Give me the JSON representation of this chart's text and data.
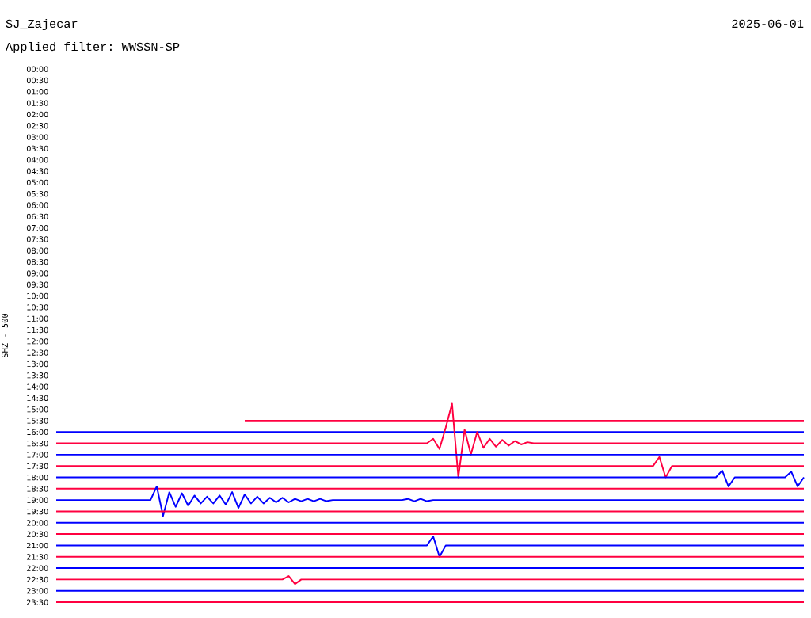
{
  "chart_data": {
    "type": "line",
    "title": "SJ_Zajecar",
    "subtitle": "Applied filter: WWSSN-SP",
    "annotations": [
      "2025-06-01"
    ],
    "ylabel": "SHZ - 500",
    "tick_labels": "y",
    "ylim": [
      23.5,
      0
    ],
    "yticks": [
      {
        "value": 0,
        "label": "00:00"
      },
      {
        "value": 0.5,
        "label": "00:30"
      },
      {
        "value": 1,
        "label": "01:00"
      },
      {
        "value": 1.5,
        "label": "01:30"
      },
      {
        "value": 2,
        "label": "02:00"
      },
      {
        "value": 2.5,
        "label": "02:30"
      },
      {
        "value": 3,
        "label": "03:00"
      },
      {
        "value": 3.5,
        "label": "03:30"
      },
      {
        "value": 4,
        "label": "04:00"
      },
      {
        "value": 4.5,
        "label": "04:30"
      },
      {
        "value": 5,
        "label": "05:00"
      },
      {
        "value": 5.5,
        "label": "05:30"
      },
      {
        "value": 6,
        "label": "06:00"
      },
      {
        "value": 6.5,
        "label": "06:30"
      },
      {
        "value": 7,
        "label": "07:00"
      },
      {
        "value": 7.5,
        "label": "07:30"
      },
      {
        "value": 8,
        "label": "08:00"
      },
      {
        "value": 8.5,
        "label": "08:30"
      },
      {
        "value": 9,
        "label": "09:00"
      },
      {
        "value": 9.5,
        "label": "09:30"
      },
      {
        "value": 10,
        "label": "10:00"
      },
      {
        "value": 10.5,
        "label": "10:30"
      },
      {
        "value": 11,
        "label": "11:00"
      },
      {
        "value": 11.5,
        "label": "11:30"
      },
      {
        "value": 12,
        "label": "12:00"
      },
      {
        "value": 12.5,
        "label": "12:30"
      },
      {
        "value": 13,
        "label": "13:00"
      },
      {
        "value": 13.5,
        "label": "13:30"
      },
      {
        "value": 14,
        "label": "14:00"
      },
      {
        "value": 14.5,
        "label": "14:30"
      },
      {
        "value": 15,
        "label": "15:00"
      },
      {
        "value": 15.5,
        "label": "15:30"
      },
      {
        "value": 16,
        "label": "16:00"
      },
      {
        "value": 16.5,
        "label": "16:30"
      },
      {
        "value": 17,
        "label": "17:00"
      },
      {
        "value": 17.5,
        "label": "17:30"
      },
      {
        "value": 18,
        "label": "18:00"
      },
      {
        "value": 18.5,
        "label": "18:30"
      },
      {
        "value": 19,
        "label": "19:00"
      },
      {
        "value": 19.5,
        "label": "19:30"
      },
      {
        "value": 20,
        "label": "20:00"
      },
      {
        "value": 20.5,
        "label": "20:30"
      },
      {
        "value": 21,
        "label": "21:00"
      },
      {
        "value": 21.5,
        "label": "21:30"
      },
      {
        "value": 22,
        "label": "22:00"
      },
      {
        "value": 22.5,
        "label": "22:30"
      },
      {
        "value": 23,
        "label": "23:00"
      },
      {
        "value": 23.5,
        "label": "23:30"
      }
    ],
    "categories": [
      null,
      null,
      null,
      null,
      null,
      null,
      null,
      null,
      null,
      null,
      null,
      null,
      null,
      null,
      null,
      null,
      null,
      null,
      null,
      null,
      null,
      null,
      null,
      null,
      null,
      null,
      null,
      null,
      null,
      null,
      null,
      null,
      null,
      null,
      null,
      null,
      null,
      null,
      null,
      null,
      null,
      null,
      null,
      null,
      null,
      null,
      null,
      null,
      null,
      null,
      null,
      null,
      null,
      null,
      null,
      null,
      null,
      null,
      null,
      null,
      null,
      null,
      null,
      null,
      null,
      null,
      null,
      null,
      null,
      null,
      null,
      null,
      null,
      null,
      null,
      null,
      null,
      null,
      null,
      null,
      null,
      null,
      null,
      null,
      null,
      null,
      null,
      null,
      null,
      null,
      null,
      null,
      null,
      null,
      null,
      null,
      null,
      null,
      null,
      null,
      null,
      null,
      null,
      null,
      null,
      null,
      null,
      null,
      null,
      null,
      null,
      null,
      null,
      null,
      null,
      null,
      null,
      null,
      null,
      null
    ],
    "series": [
      {
        "color": "#ff0040",
        "values": [
          null,
          null,
          null,
          null,
          null,
          null,
          null,
          null,
          null,
          null,
          null,
          null,
          null,
          null,
          null,
          null,
          null,
          null,
          null,
          null,
          null,
          null,
          null,
          null,
          null,
          null,
          null,
          null,
          null,
          null,
          15.5,
          15.5,
          15.5,
          15.5,
          15.5,
          15.5,
          15.5,
          15.5,
          15.5,
          15.5,
          15.5,
          15.5,
          15.5,
          15.5,
          15.5,
          15.5,
          15.5,
          15.5,
          15.5,
          15.5,
          15.5,
          15.5,
          15.5,
          15.5,
          15.5,
          15.5,
          15.5,
          15.5,
          15.5,
          15.5,
          15.5,
          15.5,
          15.5,
          15.5,
          15.5,
          15.5,
          15.5,
          15.5,
          15.5,
          15.5,
          15.5,
          15.5,
          15.5,
          15.5,
          15.5,
          15.5,
          15.5,
          15.5,
          15.5,
          15.5,
          15.5,
          15.5,
          15.5,
          15.5,
          15.5,
          15.5,
          15.5,
          15.5,
          15.5,
          15.5,
          15.5,
          15.5,
          15.5,
          15.5,
          15.5,
          15.5,
          15.5,
          15.5,
          15.5,
          15.5,
          15.5,
          15.5,
          15.5,
          15.5,
          15.5,
          15.5,
          15.5,
          15.5,
          15.5,
          15.5,
          15.5,
          15.5,
          15.5,
          15.5,
          15.5,
          15.5,
          15.5,
          15.5,
          15.5,
          15.5
        ]
      },
      {
        "color": "#0000ff",
        "values": [
          16,
          16,
          16,
          16,
          16,
          16,
          16,
          16,
          16,
          16,
          16,
          16,
          16,
          16,
          16,
          16,
          16,
          16,
          16,
          16,
          16,
          16,
          16,
          16,
          16,
          16,
          16,
          16,
          16,
          16,
          16,
          16,
          16,
          16,
          16,
          16,
          16,
          16,
          16,
          16,
          16,
          16,
          16,
          16,
          16,
          16,
          16,
          16,
          16,
          16,
          16,
          16,
          16,
          16,
          16,
          16,
          16,
          16,
          16,
          16,
          16,
          16,
          16,
          16,
          16,
          16,
          16,
          16,
          16,
          16,
          16,
          16,
          16,
          16,
          16,
          16,
          16,
          16,
          16,
          16,
          16,
          16,
          16,
          16,
          16,
          16,
          16,
          16,
          16,
          16,
          16,
          16,
          16,
          16,
          16,
          16,
          16,
          16,
          16,
          16,
          16,
          16,
          16,
          16,
          16,
          16,
          16,
          16,
          16,
          16,
          16,
          16,
          16,
          16,
          16,
          16,
          16,
          16,
          16,
          16
        ]
      },
      {
        "color": "#ff0040",
        "values": [
          16.5,
          16.5,
          16.5,
          16.5,
          16.5,
          16.5,
          16.5,
          16.5,
          16.5,
          16.5,
          16.5,
          16.5,
          16.5,
          16.5,
          16.5,
          16.5,
          16.5,
          16.5,
          16.5,
          16.5,
          16.5,
          16.5,
          16.5,
          16.5,
          16.5,
          16.5,
          16.5,
          16.5,
          16.5,
          16.5,
          16.5,
          16.5,
          16.5,
          16.5,
          16.5,
          16.5,
          16.5,
          16.5,
          16.5,
          16.5,
          16.5,
          16.5,
          16.5,
          16.5,
          16.5,
          16.5,
          16.5,
          16.5,
          16.5,
          16.5,
          16.5,
          16.5,
          16.5,
          16.5,
          16.5,
          16.5,
          16.5,
          16.5,
          16.5,
          16.5,
          16.3,
          16.75,
          15.8,
          14.75,
          18.0,
          15.9,
          17.0,
          16.0,
          16.7,
          16.3,
          16.65,
          16.35,
          16.6,
          16.4,
          16.55,
          16.45,
          16.5,
          16.5,
          16.5,
          16.5,
          16.5,
          16.5,
          16.5,
          16.5,
          16.5,
          16.5,
          16.5,
          16.5,
          16.5,
          16.5,
          16.5,
          16.5,
          16.5,
          16.5,
          16.5,
          16.5,
          16.5,
          16.5,
          16.5,
          16.5,
          16.5,
          16.5,
          16.5,
          16.5,
          16.5,
          16.5,
          16.5,
          16.5,
          16.5,
          16.5,
          16.5,
          16.5,
          16.5,
          16.5,
          16.5,
          16.5,
          16.5,
          16.5,
          16.5,
          16.5
        ]
      },
      {
        "color": "#0000ff",
        "values": [
          17,
          17,
          17,
          17,
          17,
          17,
          17,
          17,
          17,
          17,
          17,
          17,
          17,
          17,
          17,
          17,
          17,
          17,
          17,
          17,
          17,
          17,
          17,
          17,
          17,
          17,
          17,
          17,
          17,
          17,
          17,
          17,
          17,
          17,
          17,
          17,
          17,
          17,
          17,
          17,
          17,
          17,
          17,
          17,
          17,
          17,
          17,
          17,
          17,
          17,
          17,
          17,
          17,
          17,
          17,
          17,
          17,
          17,
          17,
          17,
          17,
          17,
          17,
          17,
          17,
          17,
          17,
          17,
          17,
          17,
          17,
          17,
          17,
          17,
          17,
          17,
          17,
          17,
          17,
          17,
          17,
          17,
          17,
          17,
          17,
          17,
          17,
          17,
          17,
          17,
          17,
          17,
          17,
          17,
          17,
          17,
          17,
          17,
          17,
          17,
          17,
          17,
          17,
          17,
          17,
          17,
          17,
          17,
          17,
          17,
          17,
          17,
          17,
          17,
          17,
          17,
          17,
          17,
          17,
          17
        ]
      },
      {
        "color": "#ff0040",
        "values": [
          17.5,
          17.5,
          17.5,
          17.5,
          17.5,
          17.5,
          17.5,
          17.5,
          17.5,
          17.5,
          17.5,
          17.5,
          17.5,
          17.5,
          17.5,
          17.5,
          17.5,
          17.5,
          17.5,
          17.5,
          17.5,
          17.5,
          17.5,
          17.5,
          17.5,
          17.5,
          17.5,
          17.5,
          17.5,
          17.5,
          17.5,
          17.5,
          17.5,
          17.5,
          17.5,
          17.5,
          17.5,
          17.5,
          17.5,
          17.5,
          17.5,
          17.5,
          17.5,
          17.5,
          17.5,
          17.5,
          17.5,
          17.5,
          17.5,
          17.5,
          17.5,
          17.5,
          17.5,
          17.5,
          17.5,
          17.5,
          17.5,
          17.5,
          17.5,
          17.5,
          17.5,
          17.5,
          17.5,
          17.5,
          17.5,
          17.5,
          17.5,
          17.5,
          17.5,
          17.5,
          17.5,
          17.5,
          17.5,
          17.5,
          17.5,
          17.5,
          17.5,
          17.5,
          17.5,
          17.5,
          17.5,
          17.5,
          17.5,
          17.5,
          17.5,
          17.5,
          17.5,
          17.5,
          17.5,
          17.5,
          17.5,
          17.5,
          17.5,
          17.5,
          17.5,
          17.5,
          17.1,
          18.0,
          17.5,
          17.5,
          17.5,
          17.5,
          17.5,
          17.5,
          17.5,
          17.5,
          17.5,
          17.5,
          17.5,
          17.5,
          17.5,
          17.5,
          17.5,
          17.5,
          17.5,
          17.5,
          17.5,
          17.5,
          17.5,
          17.5
        ]
      },
      {
        "color": "#0000ff",
        "values": [
          18,
          18,
          18,
          18,
          18,
          18,
          18,
          18,
          18,
          18,
          18,
          18,
          18,
          18,
          18,
          18,
          18,
          18,
          18,
          18,
          18,
          18,
          18,
          18,
          18,
          18,
          18,
          18,
          18,
          18,
          18,
          18,
          18,
          18,
          18,
          18,
          18,
          18,
          18,
          18,
          18,
          18,
          18,
          18,
          18,
          18,
          18,
          18,
          18,
          18,
          18,
          18,
          18,
          18,
          18,
          18,
          18,
          18,
          18,
          18,
          18,
          18,
          18,
          18,
          18,
          18,
          18,
          18,
          18,
          18,
          18,
          18,
          18,
          18,
          18,
          18,
          18,
          18,
          18,
          18,
          18,
          18,
          18,
          18,
          18,
          18,
          18,
          18,
          18,
          18,
          18,
          18,
          18,
          18,
          18,
          18,
          18,
          18,
          18,
          18,
          18,
          18,
          18,
          18,
          18,
          18,
          17.7,
          18.4,
          18,
          18,
          18,
          18,
          18,
          18,
          18,
          18,
          18,
          17.75,
          18.4,
          18
        ]
      },
      {
        "color": "#ff0040",
        "values": [
          18.5,
          18.5,
          18.5,
          18.5,
          18.5,
          18.5,
          18.5,
          18.5,
          18.5,
          18.5,
          18.5,
          18.5,
          18.5,
          18.5,
          18.5,
          18.5,
          18.5,
          18.5,
          18.5,
          18.5,
          18.5,
          18.5,
          18.5,
          18.5,
          18.5,
          18.5,
          18.5,
          18.5,
          18.5,
          18.5,
          18.5,
          18.5,
          18.5,
          18.5,
          18.5,
          18.5,
          18.5,
          18.5,
          18.5,
          18.5,
          18.5,
          18.5,
          18.5,
          18.5,
          18.5,
          18.5,
          18.5,
          18.5,
          18.5,
          18.5,
          18.5,
          18.5,
          18.5,
          18.5,
          18.5,
          18.5,
          18.5,
          18.5,
          18.5,
          18.5,
          18.5,
          18.5,
          18.5,
          18.5,
          18.5,
          18.5,
          18.5,
          18.5,
          18.5,
          18.5,
          18.5,
          18.5,
          18.5,
          18.5,
          18.5,
          18.5,
          18.5,
          18.5,
          18.5,
          18.5,
          18.5,
          18.5,
          18.5,
          18.5,
          18.5,
          18.5,
          18.5,
          18.5,
          18.5,
          18.5,
          18.5,
          18.5,
          18.5,
          18.5,
          18.5,
          18.5,
          18.5,
          18.5,
          18.5,
          18.5,
          18.5,
          18.5,
          18.5,
          18.5,
          18.5,
          18.5,
          18.5,
          18.5,
          18.5,
          18.5,
          18.5,
          18.5,
          18.5,
          18.5,
          18.5,
          18.5,
          18.5,
          18.5,
          18.5,
          18.5
        ]
      },
      {
        "color": "#0000ff",
        "values": [
          19,
          19,
          19,
          19,
          19,
          19,
          19,
          19,
          19,
          19,
          19,
          19,
          19,
          19,
          19,
          19,
          18.4,
          19.7,
          18.65,
          19.3,
          18.7,
          19.25,
          18.8,
          19.15,
          18.85,
          19.15,
          18.8,
          19.2,
          18.65,
          19.35,
          18.75,
          19.15,
          18.85,
          19.15,
          18.9,
          19.1,
          18.9,
          19.1,
          18.95,
          19.05,
          18.95,
          19.05,
          18.95,
          19.05,
          19,
          19,
          19,
          19,
          19,
          19,
          19,
          19,
          19,
          19,
          19,
          19,
          18.95,
          19.05,
          18.95,
          19.05,
          19,
          19,
          19,
          19,
          19,
          19,
          19,
          19,
          19,
          19,
          19,
          19,
          19,
          19,
          19,
          19,
          19,
          19,
          19,
          19,
          19,
          19,
          19,
          19,
          19,
          19,
          19,
          19,
          19,
          19,
          19,
          19,
          19,
          19,
          19,
          19,
          19,
          19,
          19,
          19,
          19,
          19,
          19,
          19,
          19,
          19,
          19,
          19,
          19,
          19,
          19,
          19,
          19,
          19,
          19,
          19,
          19,
          19,
          19,
          19
        ]
      },
      {
        "color": "#ff0040",
        "values": [
          19.5,
          19.5,
          19.5,
          19.5,
          19.5,
          19.5,
          19.5,
          19.5,
          19.5,
          19.5,
          19.5,
          19.5,
          19.5,
          19.5,
          19.5,
          19.5,
          19.5,
          19.5,
          19.5,
          19.5,
          19.5,
          19.5,
          19.5,
          19.5,
          19.5,
          19.5,
          19.5,
          19.5,
          19.5,
          19.5,
          19.5,
          19.5,
          19.5,
          19.5,
          19.5,
          19.5,
          19.5,
          19.5,
          19.5,
          19.5,
          19.5,
          19.5,
          19.5,
          19.5,
          19.5,
          19.5,
          19.5,
          19.5,
          19.5,
          19.5,
          19.5,
          19.5,
          19.5,
          19.5,
          19.5,
          19.5,
          19.5,
          19.5,
          19.5,
          19.5,
          19.5,
          19.5,
          19.5,
          19.5,
          19.5,
          19.5,
          19.5,
          19.5,
          19.5,
          19.5,
          19.5,
          19.5,
          19.5,
          19.5,
          19.5,
          19.5,
          19.5,
          19.5,
          19.5,
          19.5,
          19.5,
          19.5,
          19.5,
          19.5,
          19.5,
          19.5,
          19.5,
          19.5,
          19.5,
          19.5,
          19.5,
          19.5,
          19.5,
          19.5,
          19.5,
          19.5,
          19.5,
          19.5,
          19.5,
          19.5,
          19.5,
          19.5,
          19.5,
          19.5,
          19.5,
          19.5,
          19.5,
          19.5,
          19.5,
          19.5,
          19.5,
          19.5,
          19.5,
          19.5,
          19.5,
          19.5,
          19.5,
          19.5,
          19.5,
          19.5
        ]
      },
      {
        "color": "#0000ff",
        "values": [
          20,
          20,
          20,
          20,
          20,
          20,
          20,
          20,
          20,
          20,
          20,
          20,
          20,
          20,
          20,
          20,
          20,
          20,
          20,
          20,
          20,
          20,
          20,
          20,
          20,
          20,
          20,
          20,
          20,
          20,
          20,
          20,
          20,
          20,
          20,
          20,
          20,
          20,
          20,
          20,
          20,
          20,
          20,
          20,
          20,
          20,
          20,
          20,
          20,
          20,
          20,
          20,
          20,
          20,
          20,
          20,
          20,
          20,
          20,
          20,
          20,
          20,
          20,
          20,
          20,
          20,
          20,
          20,
          20,
          20,
          20,
          20,
          20,
          20,
          20,
          20,
          20,
          20,
          20,
          20,
          20,
          20,
          20,
          20,
          20,
          20,
          20,
          20,
          20,
          20,
          20,
          20,
          20,
          20,
          20,
          20,
          20,
          20,
          20,
          20,
          20,
          20,
          20,
          20,
          20,
          20,
          20,
          20,
          20,
          20,
          20,
          20,
          20,
          20,
          20,
          20,
          20,
          20,
          20,
          20
        ]
      },
      {
        "color": "#ff0040",
        "values": [
          20.5,
          20.5,
          20.5,
          20.5,
          20.5,
          20.5,
          20.5,
          20.5,
          20.5,
          20.5,
          20.5,
          20.5,
          20.5,
          20.5,
          20.5,
          20.5,
          20.5,
          20.5,
          20.5,
          20.5,
          20.5,
          20.5,
          20.5,
          20.5,
          20.5,
          20.5,
          20.5,
          20.5,
          20.5,
          20.5,
          20.5,
          20.5,
          20.5,
          20.5,
          20.5,
          20.5,
          20.5,
          20.5,
          20.5,
          20.5,
          20.5,
          20.5,
          20.5,
          20.5,
          20.5,
          20.5,
          20.5,
          20.5,
          20.5,
          20.5,
          20.5,
          20.5,
          20.5,
          20.5,
          20.5,
          20.5,
          20.5,
          20.5,
          20.5,
          20.5,
          20.5,
          20.5,
          20.5,
          20.5,
          20.5,
          20.5,
          20.5,
          20.5,
          20.5,
          20.5,
          20.5,
          20.5,
          20.5,
          20.5,
          20.5,
          20.5,
          20.5,
          20.5,
          20.5,
          20.5,
          20.5,
          20.5,
          20.5,
          20.5,
          20.5,
          20.5,
          20.5,
          20.5,
          20.5,
          20.5,
          20.5,
          20.5,
          20.5,
          20.5,
          20.5,
          20.5,
          20.5,
          20.5,
          20.5,
          20.5,
          20.5,
          20.5,
          20.5,
          20.5,
          20.5,
          20.5,
          20.5,
          20.5,
          20.5,
          20.5,
          20.5,
          20.5,
          20.5,
          20.5,
          20.5,
          20.5,
          20.5,
          20.5,
          20.5,
          20.5
        ]
      },
      {
        "color": "#0000ff",
        "values": [
          21,
          21,
          21,
          21,
          21,
          21,
          21,
          21,
          21,
          21,
          21,
          21,
          21,
          21,
          21,
          21,
          21,
          21,
          21,
          21,
          21,
          21,
          21,
          21,
          21,
          21,
          21,
          21,
          21,
          21,
          21,
          21,
          21,
          21,
          21,
          21,
          21,
          21,
          21,
          21,
          21,
          21,
          21,
          21,
          21,
          21,
          21,
          21,
          21,
          21,
          21,
          21,
          21,
          21,
          21,
          21,
          21,
          21,
          21,
          21,
          20.6,
          21.5,
          21,
          21,
          21,
          21,
          21,
          21,
          21,
          21,
          21,
          21,
          21,
          21,
          21,
          21,
          21,
          21,
          21,
          21,
          21,
          21,
          21,
          21,
          21,
          21,
          21,
          21,
          21,
          21,
          21,
          21,
          21,
          21,
          21,
          21,
          21,
          21,
          21,
          21,
          21,
          21,
          21,
          21,
          21,
          21,
          21,
          21,
          21,
          21,
          21,
          21,
          21,
          21,
          21,
          21,
          21,
          21,
          21,
          21
        ]
      },
      {
        "color": "#ff0040",
        "values": [
          21.5,
          21.5,
          21.5,
          21.5,
          21.5,
          21.5,
          21.5,
          21.5,
          21.5,
          21.5,
          21.5,
          21.5,
          21.5,
          21.5,
          21.5,
          21.5,
          21.5,
          21.5,
          21.5,
          21.5,
          21.5,
          21.5,
          21.5,
          21.5,
          21.5,
          21.5,
          21.5,
          21.5,
          21.5,
          21.5,
          21.5,
          21.5,
          21.5,
          21.5,
          21.5,
          21.5,
          21.5,
          21.5,
          21.5,
          21.5,
          21.5,
          21.5,
          21.5,
          21.5,
          21.5,
          21.5,
          21.5,
          21.5,
          21.5,
          21.5,
          21.5,
          21.5,
          21.5,
          21.5,
          21.5,
          21.5,
          21.5,
          21.5,
          21.5,
          21.5,
          21.5,
          21.5,
          21.5,
          21.5,
          21.5,
          21.5,
          21.5,
          21.5,
          21.5,
          21.5,
          21.5,
          21.5,
          21.5,
          21.5,
          21.5,
          21.5,
          21.5,
          21.5,
          21.5,
          21.5,
          21.5,
          21.5,
          21.5,
          21.5,
          21.5,
          21.5,
          21.5,
          21.5,
          21.5,
          21.5,
          21.5,
          21.5,
          21.5,
          21.5,
          21.5,
          21.5,
          21.5,
          21.5,
          21.5,
          21.5,
          21.5,
          21.5,
          21.5,
          21.5,
          21.5,
          21.5,
          21.5,
          21.5,
          21.5,
          21.5,
          21.5,
          21.5,
          21.5,
          21.5,
          21.5,
          21.5,
          21.5,
          21.5,
          21.5,
          21.5
        ]
      },
      {
        "color": "#0000ff",
        "values": [
          22,
          22,
          22,
          22,
          22,
          22,
          22,
          22,
          22,
          22,
          22,
          22,
          22,
          22,
          22,
          22,
          22,
          22,
          22,
          22,
          22,
          22,
          22,
          22,
          22,
          22,
          22,
          22,
          22,
          22,
          22,
          22,
          22,
          22,
          22,
          22,
          22,
          22,
          22,
          22,
          22,
          22,
          22,
          22,
          22,
          22,
          22,
          22,
          22,
          22,
          22,
          22,
          22,
          22,
          22,
          22,
          22,
          22,
          22,
          22,
          22,
          22,
          22,
          22,
          22,
          22,
          22,
          22,
          22,
          22,
          22,
          22,
          22,
          22,
          22,
          22,
          22,
          22,
          22,
          22,
          22,
          22,
          22,
          22,
          22,
          22,
          22,
          22,
          22,
          22,
          22,
          22,
          22,
          22,
          22,
          22,
          22,
          22,
          22,
          22,
          22,
          22,
          22,
          22,
          22,
          22,
          22,
          22,
          22,
          22,
          22,
          22,
          22,
          22,
          22,
          22,
          22,
          22,
          22,
          22
        ]
      },
      {
        "color": "#ff0040",
        "values": [
          22.5,
          22.5,
          22.5,
          22.5,
          22.5,
          22.5,
          22.5,
          22.5,
          22.5,
          22.5,
          22.5,
          22.5,
          22.5,
          22.5,
          22.5,
          22.5,
          22.5,
          22.5,
          22.5,
          22.5,
          22.5,
          22.5,
          22.5,
          22.5,
          22.5,
          22.5,
          22.5,
          22.5,
          22.5,
          22.5,
          22.5,
          22.5,
          22.5,
          22.5,
          22.5,
          22.5,
          22.5,
          22.35,
          22.7,
          22.5,
          22.5,
          22.5,
          22.5,
          22.5,
          22.5,
          22.5,
          22.5,
          22.5,
          22.5,
          22.5,
          22.5,
          22.5,
          22.5,
          22.5,
          22.5,
          22.5,
          22.5,
          22.5,
          22.5,
          22.5,
          22.5,
          22.5,
          22.5,
          22.5,
          22.5,
          22.5,
          22.5,
          22.5,
          22.5,
          22.5,
          22.5,
          22.5,
          22.5,
          22.5,
          22.5,
          22.5,
          22.5,
          22.5,
          22.5,
          22.5,
          22.5,
          22.5,
          22.5,
          22.5,
          22.5,
          22.5,
          22.5,
          22.5,
          22.5,
          22.5,
          22.5,
          22.5,
          22.5,
          22.5,
          22.5,
          22.5,
          22.5,
          22.5,
          22.5,
          22.5,
          22.5,
          22.5,
          22.5,
          22.5,
          22.5,
          22.5,
          22.5,
          22.5,
          22.5,
          22.5,
          22.5,
          22.5,
          22.5,
          22.5,
          22.5,
          22.5,
          22.5,
          22.5,
          22.5,
          22.5
        ]
      },
      {
        "color": "#0000ff",
        "values": [
          23,
          23,
          23,
          23,
          23,
          23,
          23,
          23,
          23,
          23,
          23,
          23,
          23,
          23,
          23,
          23,
          23,
          23,
          23,
          23,
          23,
          23,
          23,
          23,
          23,
          23,
          23,
          23,
          23,
          23,
          23,
          23,
          23,
          23,
          23,
          23,
          23,
          23,
          23,
          23,
          23,
          23,
          23,
          23,
          23,
          23,
          23,
          23,
          23,
          23,
          23,
          23,
          23,
          23,
          23,
          23,
          23,
          23,
          23,
          23,
          23,
          23,
          23,
          23,
          23,
          23,
          23,
          23,
          23,
          23,
          23,
          23,
          23,
          23,
          23,
          23,
          23,
          23,
          23,
          23,
          23,
          23,
          23,
          23,
          23,
          23,
          23,
          23,
          23,
          23,
          23,
          23,
          23,
          23,
          23,
          23,
          23,
          23,
          23,
          23,
          23,
          23,
          23,
          23,
          23,
          23,
          23,
          23,
          23,
          23,
          23,
          23,
          23,
          23,
          23,
          23,
          23,
          23,
          23,
          23
        ]
      },
      {
        "color": "#ff0040",
        "values": [
          23.5,
          23.5,
          23.5,
          23.5,
          23.5,
          23.5,
          23.5,
          23.5,
          23.5,
          23.5,
          23.5,
          23.5,
          23.5,
          23.5,
          23.5,
          23.5,
          23.5,
          23.5,
          23.5,
          23.5,
          23.5,
          23.5,
          23.5,
          23.5,
          23.5,
          23.5,
          23.5,
          23.5,
          23.5,
          23.5,
          23.5,
          23.5,
          23.5,
          23.5,
          23.5,
          23.5,
          23.5,
          23.5,
          23.5,
          23.5,
          23.5,
          23.5,
          23.5,
          23.5,
          23.5,
          23.5,
          23.5,
          23.5,
          23.5,
          23.5,
          23.5,
          23.5,
          23.5,
          23.5,
          23.5,
          23.5,
          23.5,
          23.5,
          23.5,
          23.5,
          23.5,
          23.5,
          23.5,
          23.5,
          23.5,
          23.5,
          23.5,
          23.5,
          23.5,
          23.5,
          23.5,
          23.5,
          23.5,
          23.5,
          23.5,
          23.5,
          23.5,
          23.5,
          23.5,
          23.5,
          23.5,
          23.5,
          23.5,
          23.5,
          23.5,
          23.5,
          23.5,
          23.5,
          23.5,
          23.5,
          23.5,
          23.5,
          23.5,
          23.5,
          23.5,
          23.5,
          23.5,
          23.5,
          23.5,
          23.5,
          23.5,
          23.5,
          23.5,
          23.5,
          23.5,
          23.5,
          23.5,
          23.5,
          23.5,
          23.5,
          23.5,
          23.5,
          23.5,
          23.5,
          23.5,
          23.5,
          23.5,
          23.5,
          23.5,
          23.5
        ]
      }
    ]
  }
}
